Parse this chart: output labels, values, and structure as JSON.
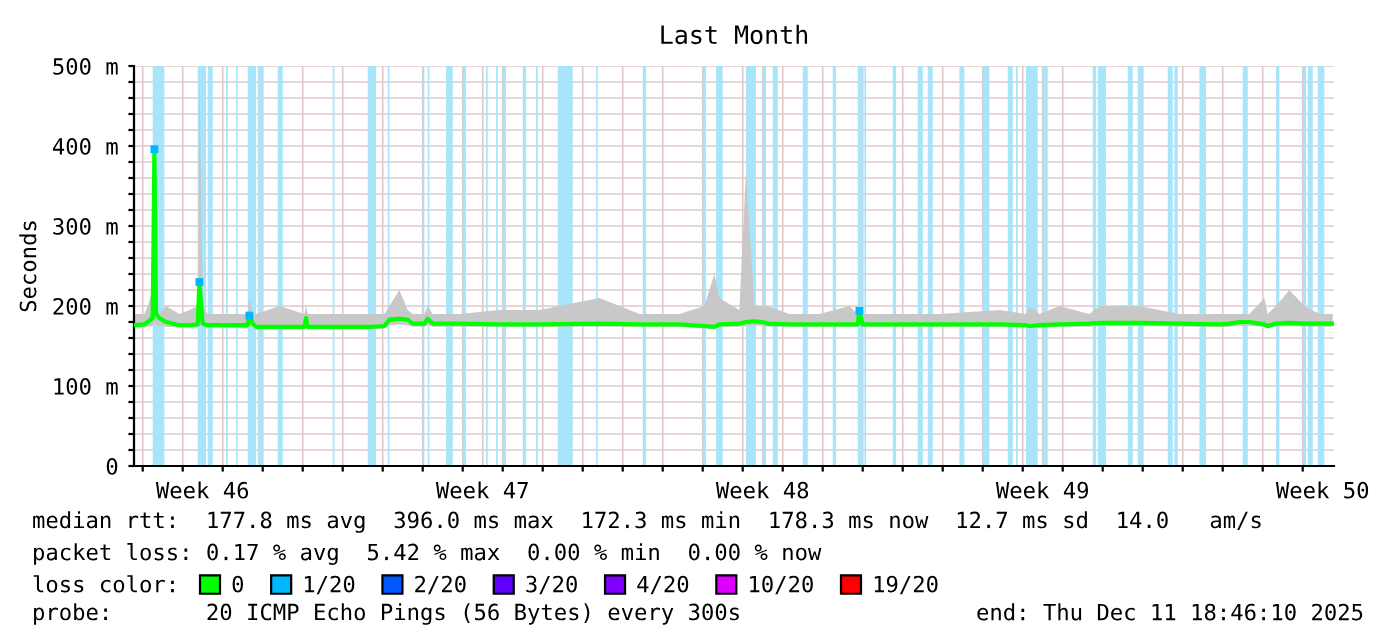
{
  "chart_data": {
    "type": "line",
    "title": "Last Month",
    "ylabel": "Seconds",
    "x": [
      "2025-11-11T18:46",
      "2025-11-12T01:00",
      "2025-11-12T03:00",
      "2025-11-12T06:00",
      "2025-11-12T07:00",
      "2025-11-12T08:00",
      "2025-11-12T10:00",
      "2025-11-12T14:00",
      "2025-11-12T22:00",
      "2025-11-13T04:00",
      "2025-11-13T09:00",
      "2025-11-13T10:00",
      "2025-11-13T12:00",
      "2025-11-13T15:00",
      "2025-11-13T22:00",
      "2025-11-14T15:00",
      "2025-11-14T16:00",
      "2025-11-14T18:00",
      "2025-11-14T20:00",
      "2025-11-15T10:00",
      "2025-11-16T01:00",
      "2025-11-16T02:00",
      "2025-11-16T03:00",
      "2025-11-16T22:00",
      "2025-11-17T16:00",
      "2025-11-18T01:00",
      "2025-11-18T04:00",
      "2025-11-18T10:00",
      "2025-11-18T15:00",
      "2025-11-18T18:00",
      "2025-11-19T01:00",
      "2025-11-19T03:00",
      "2025-11-19T06:00",
      "2025-11-19T22:00",
      "2025-11-20T22:00",
      "2025-11-21T22:00",
      "2025-11-23T10:00",
      "2025-11-24T10:00",
      "2025-11-25T10:00",
      "2025-11-26T01:00",
      "2025-11-26T07:00",
      "2025-11-26T10:00",
      "2025-11-26T22:00",
      "2025-11-27T02:00",
      "2025-11-27T07:00",
      "2025-11-27T12:00",
      "2025-11-27T15:00",
      "2025-11-28T04:00",
      "2025-11-28T22:00",
      "2025-11-29T16:00",
      "2025-11-29T21:00",
      "2025-11-29T22:00",
      "2025-11-30T00:00",
      "2025-11-30T22:00",
      "2025-12-01T22:00",
      "2025-12-03T10:00",
      "2025-12-04T02:00",
      "2025-12-04T04:00",
      "2025-12-04T10:00",
      "2025-12-04T22:00",
      "2025-12-05T16:00",
      "2025-12-05T22:00",
      "2025-12-06T22:00",
      "2025-12-07T22:00",
      "2025-12-08T22:00",
      "2025-12-09T04:00",
      "2025-12-09T10:00",
      "2025-12-09T16:00",
      "2025-12-10T01:00",
      "2025-12-10T03:00",
      "2025-12-10T08:00",
      "2025-12-10T16:00",
      "2025-12-11T01:00",
      "2025-12-11T10:00",
      "2025-12-11T18:00"
    ],
    "series": [
      {
        "name": "0",
        "color": "#00ff00",
        "values": [
          176,
          177,
          180,
          185,
          396,
          190,
          185,
          180,
          176,
          176,
          177,
          230,
          178,
          176,
          176,
          176,
          188,
          178,
          174,
          174,
          174,
          185,
          174,
          174,
          174,
          175,
          183,
          184,
          183,
          178,
          178,
          184,
          178,
          178,
          177,
          177,
          178,
          177,
          177,
          175,
          174,
          177,
          178,
          180,
          181,
          180,
          178,
          177,
          177,
          177,
          177,
          194,
          177,
          177,
          177,
          177,
          176,
          175,
          176,
          177,
          178,
          179,
          179,
          178,
          177,
          178,
          180,
          180,
          177,
          175,
          178,
          179,
          178,
          178,
          178
        ],
        "lower": [
          173,
          173,
          174,
          175,
          180,
          176,
          175,
          174,
          173,
          173,
          173,
          178,
          174,
          173,
          173,
          172,
          175,
          174,
          171,
          171,
          171,
          174,
          171,
          171,
          171,
          172,
          176,
          177,
          176,
          174,
          174,
          176,
          174,
          174,
          174,
          174,
          174,
          174,
          174,
          172,
          171,
          174,
          174,
          175,
          176,
          175,
          174,
          174,
          174,
          174,
          174,
          176,
          174,
          174,
          174,
          174,
          173,
          172,
          173,
          174,
          174,
          175,
          175,
          174,
          174,
          174,
          175,
          175,
          174,
          172,
          174,
          175,
          174,
          174,
          174
        ],
        "upper": [
          190,
          190,
          200,
          220,
          420,
          200,
          190,
          200,
          190,
          195,
          200,
          500,
          200,
          190,
          190,
          190,
          210,
          190,
          190,
          200,
          190,
          200,
          190,
          190,
          190,
          190,
          200,
          220,
          195,
          190,
          190,
          200,
          190,
          190,
          195,
          195,
          210,
          190,
          190,
          200,
          240,
          210,
          195,
          370,
          200,
          200,
          200,
          190,
          190,
          200,
          190,
          200,
          190,
          190,
          190,
          195,
          190,
          200,
          190,
          200,
          190,
          200,
          200,
          190,
          190,
          190,
          190,
          190,
          210,
          190,
          200,
          220,
          200,
          190,
          190
        ]
      },
      {
        "name": "1/20",
        "color": "#00b8ff",
        "type": "scatter",
        "marker": "square",
        "values": [
          null,
          null,
          null,
          null,
          396,
          null,
          null,
          null,
          null,
          null,
          null,
          230,
          null,
          null,
          null,
          null,
          188,
          null,
          null,
          null,
          null,
          null,
          null,
          null,
          null,
          null,
          null,
          null,
          null,
          null,
          null,
          null,
          null,
          null,
          null,
          null,
          null,
          null,
          null,
          null,
          null,
          null,
          null,
          null,
          null,
          null,
          null,
          null,
          null,
          null,
          null,
          194,
          null,
          null,
          null,
          null,
          null,
          null,
          null,
          null,
          null,
          null,
          null,
          null,
          null,
          null,
          null,
          null,
          null,
          null,
          null,
          null,
          null,
          null,
          null
        ]
      },
      {
        "name": "2/20",
        "color": "#0059ff",
        "values": [
          null,
          null,
          null,
          null,
          null,
          null,
          null,
          null,
          null,
          null,
          null,
          null,
          null,
          null,
          null,
          null,
          null,
          null,
          null,
          null,
          null,
          null,
          null,
          null,
          null,
          null,
          null,
          null,
          null,
          null,
          null,
          null,
          null,
          null,
          null,
          null,
          null,
          null,
          null,
          null,
          null,
          null,
          null,
          null,
          null,
          null,
          null,
          null,
          null,
          null,
          null,
          null,
          null,
          null,
          null,
          null,
          null,
          null,
          null,
          null,
          null,
          null,
          null,
          null,
          null,
          null,
          null,
          null,
          null,
          null,
          null,
          null,
          null,
          null,
          null
        ]
      },
      {
        "name": "3/20",
        "color": "#5e00ff",
        "values": [
          null,
          null,
          null,
          null,
          null,
          null,
          null,
          null,
          null,
          null,
          null,
          null,
          null,
          null,
          null,
          null,
          null,
          null,
          null,
          null,
          null,
          null,
          null,
          null,
          null,
          null,
          null,
          null,
          null,
          null,
          null,
          null,
          null,
          null,
          null,
          null,
          null,
          null,
          null,
          null,
          null,
          null,
          null,
          null,
          null,
          null,
          null,
          null,
          null,
          null,
          null,
          null,
          null,
          null,
          null,
          null,
          null,
          null,
          null,
          null,
          null,
          null,
          null,
          null,
          null,
          null,
          null,
          null,
          null,
          null,
          null,
          null,
          null,
          null,
          null
        ]
      },
      {
        "name": "4/20",
        "color": "#7e00ff",
        "values": [
          null,
          null,
          null,
          null,
          null,
          null,
          null,
          null,
          null,
          null,
          null,
          null,
          null,
          null,
          null,
          null,
          null,
          null,
          null,
          null,
          null,
          null,
          null,
          null,
          null,
          null,
          null,
          null,
          null,
          null,
          null,
          null,
          null,
          null,
          null,
          null,
          null,
          null,
          null,
          null,
          null,
          null,
          null,
          null,
          null,
          null,
          null,
          null,
          null,
          null,
          null,
          null,
          null,
          null,
          null,
          null,
          null,
          null,
          null,
          null,
          null,
          null,
          null,
          null,
          null,
          null,
          null,
          null,
          null,
          null,
          null,
          null,
          null,
          null,
          null
        ]
      },
      {
        "name": "10/20",
        "color": "#dd00ff",
        "values": [
          null,
          null,
          null,
          null,
          null,
          null,
          null,
          null,
          null,
          null,
          null,
          null,
          null,
          null,
          null,
          null,
          null,
          null,
          null,
          null,
          null,
          null,
          null,
          null,
          null,
          null,
          null,
          null,
          null,
          null,
          null,
          null,
          null,
          null,
          null,
          null,
          null,
          null,
          null,
          null,
          null,
          null,
          null,
          null,
          null,
          null,
          null,
          null,
          null,
          null,
          null,
          null,
          null,
          null,
          null,
          null,
          null,
          null,
          null,
          null,
          null,
          null,
          null,
          null,
          null,
          null,
          null,
          null,
          null,
          null,
          null,
          null,
          null,
          null,
          null
        ]
      },
      {
        "name": "19/20",
        "color": "#ff0000",
        "values": [
          null,
          null,
          null,
          null,
          null,
          null,
          null,
          null,
          null,
          null,
          null,
          null,
          null,
          null,
          null,
          null,
          null,
          null,
          null,
          null,
          null,
          null,
          null,
          null,
          null,
          null,
          null,
          null,
          null,
          null,
          null,
          null,
          null,
          null,
          null,
          null,
          null,
          null,
          null,
          null,
          null,
          null,
          null,
          null,
          null,
          null,
          null,
          null,
          null,
          null,
          null,
          null,
          null,
          null,
          null,
          null,
          null,
          null,
          null,
          null,
          null,
          null,
          null,
          null,
          null,
          null,
          null,
          null,
          null,
          null,
          null,
          null,
          null,
          null,
          null
        ]
      }
    ],
    "xlim": [
      "2025-11-11T18:46",
      "2025-12-11T18:46"
    ],
    "xticks": [
      {
        "value": "2025-11-13T12:00",
        "label": "Week 46"
      },
      {
        "value": "2025-11-20T12:00",
        "label": "Week 47"
      },
      {
        "value": "2025-11-27T12:00",
        "label": "Week 48"
      },
      {
        "value": "2025-12-04T12:00",
        "label": "Week 49"
      },
      {
        "value": "2025-12-11T12:00",
        "label": "Week 50"
      },
      {
        "value": "2025-11-12",
        "label": null
      },
      {
        "value": "2025-11-13",
        "label": null
      },
      {
        "value": "2025-11-14",
        "label": null
      },
      {
        "value": "2025-11-15",
        "label": null
      },
      {
        "value": "2025-11-16",
        "label": null
      },
      {
        "value": "2025-11-17",
        "label": null
      },
      {
        "value": "2025-11-18",
        "label": null
      },
      {
        "value": "2025-11-19",
        "label": null
      },
      {
        "value": "2025-11-20",
        "label": null
      },
      {
        "value": "2025-11-21",
        "label": null
      },
      {
        "value": "2025-11-22",
        "label": null
      },
      {
        "value": "2025-11-23",
        "label": null
      },
      {
        "value": "2025-11-24",
        "label": null
      },
      {
        "value": "2025-11-25",
        "label": null
      },
      {
        "value": "2025-11-26",
        "label": null
      },
      {
        "value": "2025-11-27",
        "label": null
      },
      {
        "value": "2025-11-28",
        "label": null
      },
      {
        "value": "2025-11-29",
        "label": null
      },
      {
        "value": "2025-11-30",
        "label": null
      },
      {
        "value": "2025-12-01",
        "label": null
      },
      {
        "value": "2025-12-02",
        "label": null
      },
      {
        "value": "2025-12-03",
        "label": null
      },
      {
        "value": "2025-12-04",
        "label": null
      },
      {
        "value": "2025-12-05",
        "label": null
      },
      {
        "value": "2025-12-06",
        "label": null
      },
      {
        "value": "2025-12-07",
        "label": null
      },
      {
        "value": "2025-12-08",
        "label": null
      },
      {
        "value": "2025-12-09",
        "label": null
      },
      {
        "value": "2025-12-10",
        "label": null
      },
      {
        "value": "2025-12-11",
        "label": null
      }
    ],
    "ylim": [
      0,
      500
    ],
    "yticks": [
      0,
      {
        "value": 100,
        "label": "100 m"
      },
      {
        "value": 200,
        "label": "200 m"
      },
      {
        "value": 300,
        "label": "300 m"
      },
      {
        "value": 400,
        "label": "400 m"
      },
      {
        "value": 500,
        "label": "500 m"
      },
      {
        "value": 20,
        "label": null
      },
      {
        "value": 40,
        "label": null
      },
      {
        "value": 60,
        "label": null
      },
      {
        "value": 80,
        "label": null
      },
      {
        "value": 120,
        "label": null
      },
      {
        "value": 140,
        "label": null
      },
      {
        "value": 160,
        "label": null
      },
      {
        "value": 180,
        "label": null
      },
      {
        "value": 220,
        "label": null
      },
      {
        "value": 240,
        "label": null
      },
      {
        "value": 260,
        "label": null
      },
      {
        "value": 280,
        "label": null
      },
      {
        "value": 320,
        "label": null
      },
      {
        "value": 340,
        "label": null
      },
      {
        "value": 360,
        "label": null
      },
      {
        "value": 380,
        "label": null
      },
      {
        "value": 420,
        "label": null
      },
      {
        "value": 440,
        "label": null
      },
      {
        "value": 460,
        "label": null
      },
      {
        "value": 480,
        "label": null
      }
    ],
    "grid": true,
    "legend": "bottom left",
    "bands": [
      {
        "axis": "x",
        "from": "2025-11-12T06:00",
        "to": "2025-11-12T13:00",
        "color": "#a8e4fa"
      },
      {
        "axis": "x",
        "from": "2025-11-13T09:00",
        "to": "2025-11-13T14:00",
        "color": "#a8e4fa"
      },
      {
        "axis": "x",
        "from": "2025-11-13T15:00",
        "to": "2025-11-13T18:00",
        "color": "#a8e4fa"
      },
      {
        "axis": "x",
        "from": "2025-11-14T02:00",
        "to": "2025-11-14T03:00",
        "color": "#a8e4fa"
      },
      {
        "axis": "x",
        "from": "2025-11-14T08:00",
        "to": "2025-11-14T09:00",
        "color": "#a8e4fa"
      },
      {
        "axis": "x",
        "from": "2025-11-14T15:00",
        "to": "2025-11-14T20:00",
        "color": "#a8e4fa"
      },
      {
        "axis": "x",
        "from": "2025-11-14T21:00",
        "to": "2025-11-15T00:00",
        "color": "#a8e4fa"
      },
      {
        "axis": "x",
        "from": "2025-11-15T09:00",
        "to": "2025-11-15T12:00",
        "color": "#a8e4fa"
      },
      {
        "axis": "x",
        "from": "2025-11-16T18:00",
        "to": "2025-11-16T19:00",
        "color": "#a8e4fa"
      },
      {
        "axis": "x",
        "from": "2025-11-17T15:00",
        "to": "2025-11-17T20:00",
        "color": "#a8e4fa"
      },
      {
        "axis": "x",
        "from": "2025-11-18T03:00",
        "to": "2025-11-18T04:00",
        "color": "#a8e4fa"
      },
      {
        "axis": "x",
        "from": "2025-11-19T00:00",
        "to": "2025-11-19T01:00",
        "color": "#a8e4fa"
      },
      {
        "axis": "x",
        "from": "2025-11-19T03:00",
        "to": "2025-11-19T04:00",
        "color": "#a8e4fa"
      },
      {
        "axis": "x",
        "from": "2025-11-19T14:00",
        "to": "2025-11-19T18:00",
        "color": "#a8e4fa"
      },
      {
        "axis": "x",
        "from": "2025-11-20T00:00",
        "to": "2025-11-20T02:00",
        "color": "#a8e4fa"
      },
      {
        "axis": "x",
        "from": "2025-11-20T14:00",
        "to": "2025-11-20T15:00",
        "color": "#a8e4fa"
      },
      {
        "axis": "x",
        "from": "2025-11-20T20:00",
        "to": "2025-11-20T21:00",
        "color": "#a8e4fa"
      },
      {
        "axis": "x",
        "from": "2025-11-21T00:00",
        "to": "2025-11-21T02:00",
        "color": "#a8e4fa"
      },
      {
        "axis": "x",
        "from": "2025-11-21T12:00",
        "to": "2025-11-21T14:00",
        "color": "#a8e4fa"
      },
      {
        "axis": "x",
        "from": "2025-11-21T20:00",
        "to": "2025-11-21T21:00",
        "color": "#a8e4fa"
      },
      {
        "axis": "x",
        "from": "2025-11-22T09:00",
        "to": "2025-11-22T18:00",
        "color": "#a8e4fa"
      },
      {
        "axis": "x",
        "from": "2025-11-23T08:00",
        "to": "2025-11-23T09:00",
        "color": "#a8e4fa"
      },
      {
        "axis": "x",
        "from": "2025-11-24T12:00",
        "to": "2025-11-24T14:00",
        "color": "#a8e4fa"
      },
      {
        "axis": "x",
        "from": "2025-11-26T00:00",
        "to": "2025-11-26T02:00",
        "color": "#a8e4fa"
      },
      {
        "axis": "x",
        "from": "2025-11-26T08:00",
        "to": "2025-11-26T12:00",
        "color": "#a8e4fa"
      },
      {
        "axis": "x",
        "from": "2025-11-27T02:00",
        "to": "2025-11-27T08:00",
        "color": "#a8e4fa"
      },
      {
        "axis": "x",
        "from": "2025-11-27T12:00",
        "to": "2025-11-27T14:00",
        "color": "#a8e4fa"
      },
      {
        "axis": "x",
        "from": "2025-11-27T18:00",
        "to": "2025-11-27T21:00",
        "color": "#a8e4fa"
      },
      {
        "axis": "x",
        "from": "2025-11-28T12:00",
        "to": "2025-11-28T15:00",
        "color": "#a8e4fa"
      },
      {
        "axis": "x",
        "from": "2025-11-29T06:00",
        "to": "2025-11-29T08:00",
        "color": "#a8e4fa"
      },
      {
        "axis": "x",
        "from": "2025-11-29T21:00",
        "to": "2025-11-30T00:00",
        "color": "#a8e4fa"
      },
      {
        "axis": "x",
        "from": "2025-11-30T01:00",
        "to": "2025-11-30T02:00",
        "color": "#a8e4fa"
      },
      {
        "axis": "x",
        "from": "2025-11-30T18:00",
        "to": "2025-11-30T20:00",
        "color": "#a8e4fa"
      },
      {
        "axis": "x",
        "from": "2025-12-01T09:00",
        "to": "2025-12-01T12:00",
        "color": "#a8e4fa"
      },
      {
        "axis": "x",
        "from": "2025-12-01T15:00",
        "to": "2025-12-01T18:00",
        "color": "#a8e4fa"
      },
      {
        "axis": "x",
        "from": "2025-12-02T10:00",
        "to": "2025-12-02T13:00",
        "color": "#a8e4fa"
      },
      {
        "axis": "x",
        "from": "2025-12-03T00:00",
        "to": "2025-12-03T04:00",
        "color": "#a8e4fa"
      },
      {
        "axis": "x",
        "from": "2025-12-03T15:00",
        "to": "2025-12-03T18:00",
        "color": "#a8e4fa"
      },
      {
        "axis": "x",
        "from": "2025-12-03T20:00",
        "to": "2025-12-03T21:00",
        "color": "#a8e4fa"
      },
      {
        "axis": "x",
        "from": "2025-12-04T02:00",
        "to": "2025-12-04T09:00",
        "color": "#a8e4fa"
      },
      {
        "axis": "x",
        "from": "2025-12-04T12:00",
        "to": "2025-12-04T15:00",
        "color": "#a8e4fa"
      },
      {
        "axis": "x",
        "from": "2025-12-05T18:00",
        "to": "2025-12-05T20:00",
        "color": "#a8e4fa"
      },
      {
        "axis": "x",
        "from": "2025-12-05T21:00",
        "to": "2025-12-06T02:00",
        "color": "#a8e4fa"
      },
      {
        "axis": "x",
        "from": "2025-12-06T15:00",
        "to": "2025-12-06T18:00",
        "color": "#a8e4fa"
      },
      {
        "axis": "x",
        "from": "2025-12-06T21:00",
        "to": "2025-12-07T00:00",
        "color": "#a8e4fa"
      },
      {
        "axis": "x",
        "from": "2025-12-07T15:00",
        "to": "2025-12-07T18:00",
        "color": "#a8e4fa"
      },
      {
        "axis": "x",
        "from": "2025-12-07T19:00",
        "to": "2025-12-07T21:00",
        "color": "#a8e4fa"
      },
      {
        "axis": "x",
        "from": "2025-12-08T10:00",
        "to": "2025-12-08T14:00",
        "color": "#a8e4fa"
      },
      {
        "axis": "x",
        "from": "2025-12-09T12:00",
        "to": "2025-12-09T15:00",
        "color": "#a8e4fa"
      },
      {
        "axis": "x",
        "from": "2025-12-10T08:00",
        "to": "2025-12-10T10:00",
        "color": "#a8e4fa"
      },
      {
        "axis": "x",
        "from": "2025-12-11T00:00",
        "to": "2025-12-11T02:00",
        "color": "#a8e4fa"
      },
      {
        "axis": "x",
        "from": "2025-12-11T03:00",
        "to": "2025-12-11T06:00",
        "color": "#a8e4fa"
      },
      {
        "axis": "x",
        "from": "2025-12-11T09:00",
        "to": "2025-12-11T13:00",
        "color": "#a8e4fa"
      }
    ],
    "annotations": [
      "median rtt:  177.8 ms avg  396.0 ms max  172.3 ms min  178.3 ms now  12.7 ms sd  14.0   am/s",
      "packet loss: 0.17 % avg  5.42 % max  0.00 % min  0.00 % now",
      "loss color:",
      "probe:       20 ICMP Echo Pings (56 Bytes) every 300s",
      "end: Thu Dec 11 18:46:10 2025"
    ]
  }
}
